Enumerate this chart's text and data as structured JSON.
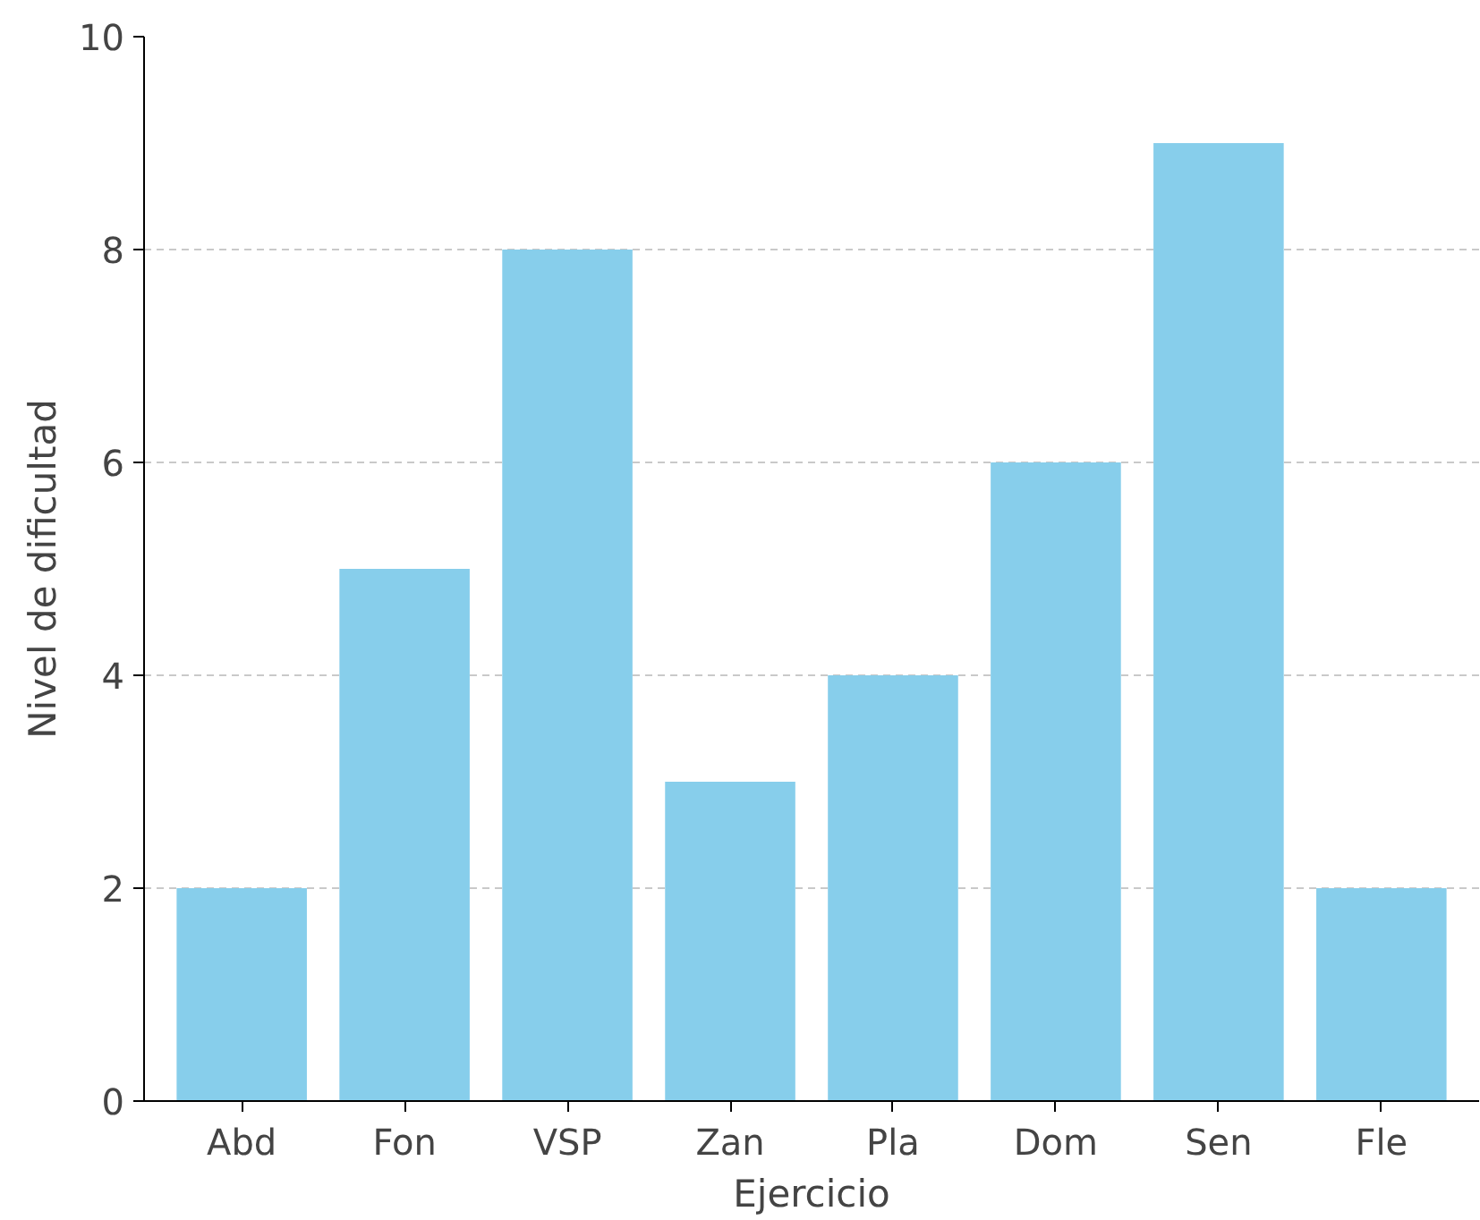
{
  "chart_data": {
    "type": "bar",
    "xlabel": "Ejercicio",
    "ylabel": "Nivel de dificultad",
    "categories": [
      "Abd",
      "Fon",
      "VSP",
      "Zan",
      "Pla",
      "Dom",
      "Sen",
      "Fle"
    ],
    "values": [
      2,
      5,
      8,
      3,
      4,
      6,
      9,
      2
    ],
    "color": "#87ceeb",
    "ylim": [
      0,
      10
    ],
    "yticks": [
      0,
      2,
      4,
      6,
      8,
      10
    ],
    "grid": "y"
  }
}
